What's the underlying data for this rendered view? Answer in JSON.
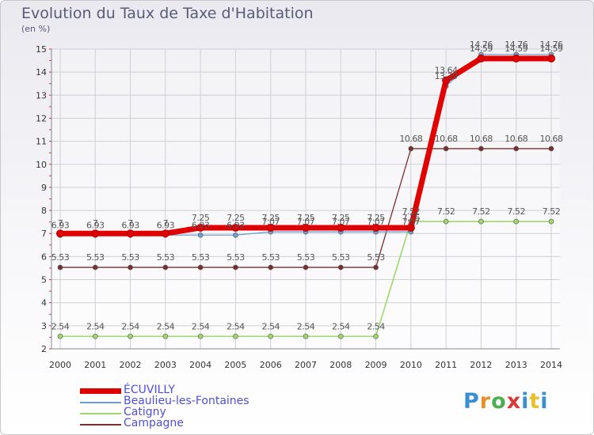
{
  "title": "Evolution du Taux de Taxe d'Habitation",
  "unit": "(en %)",
  "logo": "Proxiti",
  "chart_data": {
    "type": "line",
    "x": [
      2000,
      2001,
      2002,
      2003,
      2004,
      2005,
      2006,
      2007,
      2008,
      2009,
      2010,
      2011,
      2012,
      2013,
      2014
    ],
    "ylim": [
      2,
      15
    ],
    "yticks": [
      2,
      3,
      4,
      5,
      6,
      7,
      8,
      9,
      10,
      11,
      12,
      13,
      14,
      15
    ],
    "grid": true,
    "series": [
      {
        "name": "ÉCUVILLY",
        "color": "#e00000",
        "values": [
          7,
          7,
          7,
          7,
          7.25,
          7.25,
          7.25,
          7.25,
          7.25,
          7.25,
          7.25,
          13.64,
          14.59,
          14.59,
          14.59
        ],
        "labels": [
          "7",
          "7",
          "7",
          "7",
          "7.25",
          "7.25",
          "7.25",
          "7.25",
          "7.25",
          "7.25",
          "7.25",
          "13.64",
          "14.59",
          "14.59",
          "14.59"
        ]
      },
      {
        "name": "Beaulieu-les-Fontaines",
        "color": "#6f9fcf",
        "values": [
          6.93,
          6.93,
          6.93,
          6.93,
          6.93,
          6.93,
          7.07,
          7.07,
          7.07,
          7.07,
          7.07,
          13.39,
          14.76,
          14.76,
          14.76
        ],
        "labels": [
          "6.93",
          "6.93",
          "6.93",
          "6.93",
          "6.93",
          "6.93",
          "7.07",
          "7.07",
          "7.07",
          "7.07",
          "7.07",
          "13.39",
          "14.76",
          "14.76",
          "14.76"
        ]
      },
      {
        "name": "Catigny",
        "color": "#9ed86a",
        "values": [
          2.54,
          2.54,
          2.54,
          2.54,
          2.54,
          2.54,
          2.54,
          2.54,
          2.54,
          2.54,
          7.52,
          7.52,
          7.52,
          7.52,
          7.52
        ],
        "labels": [
          "2.54",
          "2.54",
          "2.54",
          "2.54",
          "2.54",
          "2.54",
          "2.54",
          "2.54",
          "2.54",
          "2.54",
          "7.52",
          "7.52",
          "7.52",
          "7.52",
          "7.52"
        ]
      },
      {
        "name": "Campagne",
        "color": "#7a2e2e",
        "values": [
          5.53,
          5.53,
          5.53,
          5.53,
          5.53,
          5.53,
          5.53,
          5.53,
          5.53,
          5.53,
          10.68,
          10.68,
          10.68,
          10.68,
          10.68
        ],
        "labels": [
          "5.53",
          "5.53",
          "5.53",
          "5.53",
          "5.53",
          "5.53",
          "5.53",
          "5.53",
          "5.53",
          "5.53",
          "10.68",
          "10.68",
          "10.68",
          "10.68",
          "10.68"
        ]
      }
    ]
  },
  "legend": [
    {
      "label": "ÉCUVILLY",
      "color": "#e00000"
    },
    {
      "label": "Beaulieu-les-Fontaines",
      "color": "#6f9fcf"
    },
    {
      "label": "Catigny",
      "color": "#9ed86a"
    },
    {
      "label": "Campagne",
      "color": "#7a2e2e"
    }
  ]
}
